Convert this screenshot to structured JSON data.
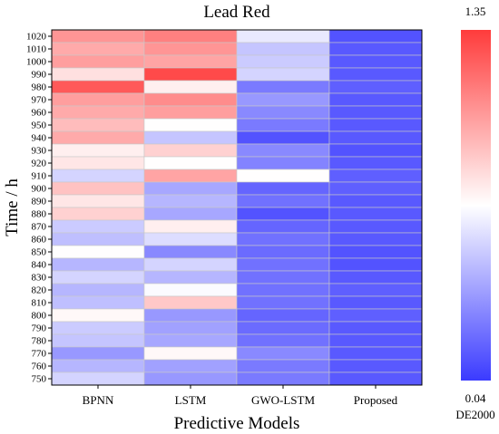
{
  "chart_data": {
    "type": "heatmap",
    "title": "Lead Red",
    "xlabel": "Predictive Models",
    "ylabel": "Time / h",
    "colorbar_label": "DE2000",
    "colorbar_max_label": "1.35",
    "colorbar_min_label": "0.04",
    "vmin": 0.04,
    "vmax": 1.35,
    "colormap": [
      "#3b3bff",
      "#ffffff",
      "#ff3b3b"
    ],
    "categories": [
      "BPNN",
      "LSTM",
      "GWO-LSTM",
      "Proposed"
    ],
    "y": [
      1020,
      1010,
      1000,
      990,
      980,
      970,
      960,
      950,
      940,
      930,
      920,
      910,
      900,
      890,
      880,
      870,
      860,
      850,
      840,
      830,
      820,
      810,
      800,
      790,
      780,
      770,
      760,
      750
    ],
    "values": [
      [
        1.05,
        1.12,
        0.62,
        0.12
      ],
      [
        0.98,
        1.05,
        0.5,
        0.14
      ],
      [
        1.02,
        1.0,
        0.52,
        0.14
      ],
      [
        0.8,
        1.3,
        0.55,
        0.14
      ],
      [
        1.25,
        0.75,
        0.25,
        0.16
      ],
      [
        1.02,
        1.08,
        0.35,
        0.14
      ],
      [
        0.98,
        1.02,
        0.3,
        0.14
      ],
      [
        0.92,
        0.7,
        0.25,
        0.14
      ],
      [
        0.98,
        0.5,
        0.12,
        0.14
      ],
      [
        0.75,
        0.85,
        0.3,
        0.12
      ],
      [
        0.78,
        0.7,
        0.28,
        0.14
      ],
      [
        0.55,
        1.0,
        0.7,
        0.16
      ],
      [
        0.9,
        0.4,
        0.18,
        0.16
      ],
      [
        0.78,
        0.45,
        0.22,
        0.14
      ],
      [
        0.85,
        0.4,
        0.12,
        0.14
      ],
      [
        0.52,
        0.75,
        0.18,
        0.14
      ],
      [
        0.48,
        0.58,
        0.22,
        0.14
      ],
      [
        0.7,
        0.3,
        0.2,
        0.12
      ],
      [
        0.45,
        0.55,
        0.22,
        0.12
      ],
      [
        0.55,
        0.45,
        0.22,
        0.14
      ],
      [
        0.45,
        0.68,
        0.22,
        0.16
      ],
      [
        0.48,
        0.88,
        0.22,
        0.14
      ],
      [
        0.72,
        0.35,
        0.18,
        0.16
      ],
      [
        0.52,
        0.38,
        0.2,
        0.14
      ],
      [
        0.5,
        0.4,
        0.22,
        0.14
      ],
      [
        0.35,
        0.72,
        0.3,
        0.14
      ],
      [
        0.45,
        0.38,
        0.25,
        0.14
      ],
      [
        0.55,
        0.35,
        0.25,
        0.14
      ]
    ]
  }
}
